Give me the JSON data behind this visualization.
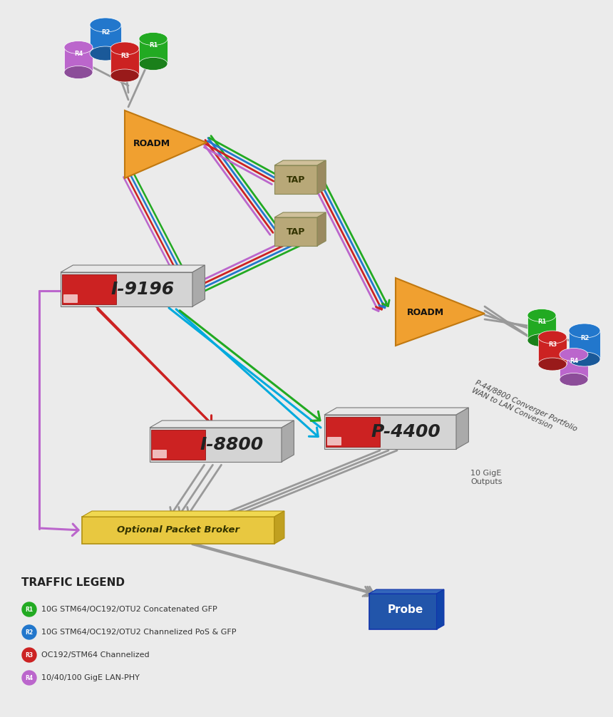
{
  "background_color": "#ebebeb",
  "legend": {
    "title": "TRAFFIC LEGEND",
    "items": [
      {
        "label": "R1",
        "desc": "10G STM64/OC192/OTU2 Concatenated GFP",
        "color": "#22aa22"
      },
      {
        "label": "R2",
        "desc": "10G STM64/OC192/OTU2 Channelized PoS & GFP",
        "color": "#2277cc"
      },
      {
        "label": "R3",
        "desc": "OC192/STM64 Channelized",
        "color": "#cc2222"
      },
      {
        "label": "R4",
        "desc": "10/40/100 GigE LAN-PHY",
        "color": "#bb66cc"
      }
    ]
  },
  "colors": {
    "green": "#22aa22",
    "blue": "#2277cc",
    "red": "#cc2222",
    "purple": "#bb66cc",
    "cyan": "#00aadd",
    "gray": "#999999"
  },
  "roadm_color": "#f0a030",
  "tap_color_face": "#b8a878",
  "tap_color_top": "#cfc09a",
  "tap_color_side": "#9a8a60",
  "probe_color": "#2255aa",
  "broker_color": "#e8c840",
  "device_face": "#d4d4d4",
  "device_top": "#e8e8e8",
  "device_side": "#aaaaaa",
  "annot1": "P-44/8800 Converger Portfolio",
  "annot2": "WAN to LAN Conversion",
  "annot_out": "10 GigE\nOutputs"
}
